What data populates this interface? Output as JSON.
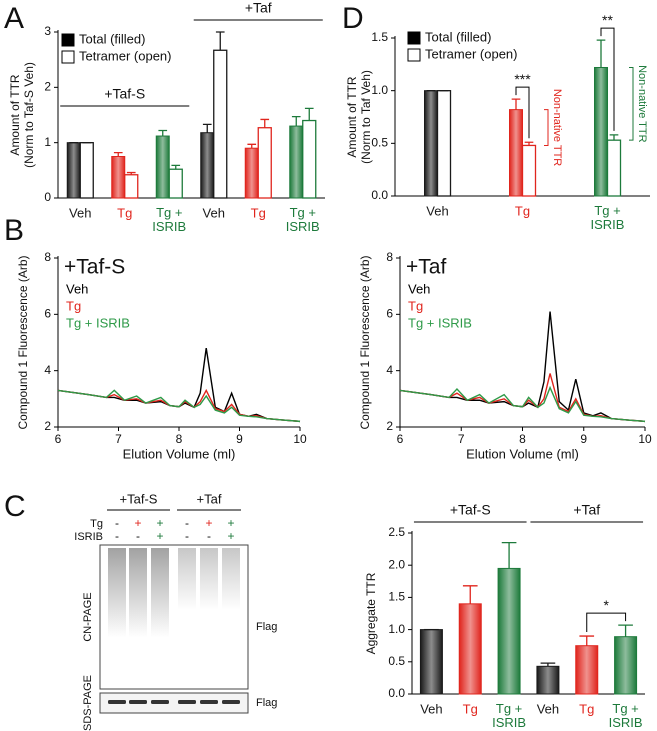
{
  "panel_labels": [
    "A",
    "B",
    "C",
    "D"
  ],
  "chart_data": [
    {
      "type": "bar",
      "ylabel": [
        "Amount of TTR",
        "(Norm to Taf-S Veh)"
      ],
      "groups": [
        "+Taf-S",
        "+Taf"
      ],
      "categories": [
        "Veh",
        "Tg",
        "Tg + ISRIB",
        "Veh",
        "Tg",
        "Tg + ISRIB"
      ],
      "colors": [
        "#1a1a1a",
        "#e0251d",
        "#1d7a3b",
        "#1a1a1a",
        "#e0251d",
        "#1d7a3b"
      ],
      "series": [
        {
          "name": "Total (filled)",
          "color": "#000000",
          "values": [
            1,
            0.75,
            1.12,
            1.18,
            0.9,
            1.3
          ],
          "errors": [
            0,
            0.07,
            0.1,
            0.15,
            0.07,
            0.17
          ]
        },
        {
          "name": "Tetramer (open)",
          "color": "#000000",
          "values": [
            1,
            0.42,
            0.52,
            2.67,
            1.27,
            1.4
          ],
          "errors": [
            0,
            0.04,
            0.07,
            0.33,
            0.15,
            0.22
          ]
        }
      ],
      "ylim": [
        0,
        3
      ],
      "yticks": [
        0,
        1,
        2,
        3
      ]
    },
    {
      "type": "bar",
      "ylabel": [
        "Amount of TTR",
        "(Norm to Taf Veh)"
      ],
      "categories": [
        "Veh",
        "Tg",
        "Tg + ISRIB"
      ],
      "colors": [
        "#1a1a1a",
        "#e0251d",
        "#1d7a3b"
      ],
      "series": [
        {
          "name": "Total (filled)",
          "color": "#000000",
          "values": [
            1,
            0.82,
            1.22
          ],
          "errors": [
            0,
            0.1,
            0.26
          ]
        },
        {
          "name": "Tetramer (open)",
          "color": "#000000",
          "values": [
            1,
            0.48,
            0.53
          ],
          "errors": [
            0,
            0.03,
            0.05
          ]
        }
      ],
      "ylim": [
        0,
        1.5
      ],
      "yticks": [
        {
          "value": 0,
          "label": "0.0"
        },
        0.5,
        {
          "value": 1,
          "label": "1.0"
        },
        1.5
      ],
      "significance": [
        "***",
        "**"
      ],
      "annotations": [
        "Non-native TTR",
        "Non-native TTR"
      ]
    },
    {
      "type": "line",
      "title": "+Taf-S",
      "xlabel": "Elution Volume (ml)",
      "ylabel": "Compound 1 Fluorescence (Arb)",
      "x": [
        6,
        6.5,
        6.8,
        6.93,
        7.1,
        7.3,
        7.45,
        7.7,
        7.85,
        8.0,
        8.1,
        8.25,
        8.35,
        8.45,
        8.6,
        8.75,
        8.87,
        9.0,
        9.15,
        9.28,
        9.45,
        9.7,
        10
      ],
      "series": [
        {
          "name": "Veh",
          "color": "#000000",
          "values": [
            3.3,
            3.15,
            3.05,
            3.05,
            2.95,
            2.95,
            2.85,
            2.9,
            2.76,
            2.72,
            2.85,
            2.7,
            3.2,
            4.8,
            2.7,
            2.55,
            3.2,
            2.45,
            2.38,
            2.45,
            2.3,
            2.25,
            2.2
          ]
        },
        {
          "name": "Tg",
          "color": "#e0251d",
          "values": [
            3.3,
            3.15,
            3.05,
            3.15,
            2.95,
            3.0,
            2.85,
            2.95,
            2.76,
            2.72,
            2.9,
            2.7,
            2.9,
            3.3,
            2.65,
            2.55,
            2.8,
            2.45,
            2.38,
            2.4,
            2.3,
            2.25,
            2.2
          ]
        },
        {
          "name": "Tg + ISRIB",
          "color": "#2e9a48",
          "values": [
            3.3,
            3.15,
            3.05,
            3.3,
            2.95,
            3.1,
            2.85,
            3.05,
            2.76,
            2.72,
            2.95,
            2.7,
            2.8,
            3.1,
            2.6,
            2.5,
            2.7,
            2.42,
            2.38,
            2.36,
            2.3,
            2.25,
            2.2
          ]
        }
      ],
      "xlim": [
        6,
        10
      ],
      "xticks": [
        6,
        7,
        8,
        9,
        10
      ],
      "ylim": [
        2,
        8
      ],
      "yticks": [
        2,
        4,
        6,
        8
      ]
    },
    {
      "type": "line",
      "title": "+Taf",
      "xlabel": "Elution Volume (ml)",
      "ylabel": "Compound 1 Fluorescence (Arb)",
      "x": [
        6,
        6.5,
        6.8,
        6.93,
        7.1,
        7.3,
        7.45,
        7.7,
        7.85,
        8.0,
        8.1,
        8.25,
        8.35,
        8.45,
        8.6,
        8.75,
        8.87,
        9.0,
        9.15,
        9.28,
        9.45,
        9.7,
        10
      ],
      "series": [
        {
          "name": "Veh",
          "color": "#000000",
          "values": [
            3.3,
            3.15,
            3.05,
            3.05,
            2.95,
            2.95,
            2.85,
            2.9,
            2.76,
            2.72,
            2.85,
            2.7,
            3.6,
            6.1,
            2.9,
            2.6,
            3.7,
            2.5,
            2.4,
            2.5,
            2.3,
            2.25,
            2.2
          ]
        },
        {
          "name": "Tg",
          "color": "#e0251d",
          "values": [
            3.3,
            3.15,
            3.05,
            3.2,
            2.95,
            3.05,
            2.85,
            3.0,
            2.76,
            2.72,
            2.95,
            2.7,
            3.0,
            3.9,
            2.7,
            2.55,
            3.0,
            2.45,
            2.38,
            2.4,
            2.3,
            2.25,
            2.2
          ]
        },
        {
          "name": "Tg + ISRIB",
          "color": "#2e9a48",
          "values": [
            3.3,
            3.15,
            3.05,
            3.35,
            2.95,
            3.15,
            2.85,
            3.15,
            2.76,
            2.72,
            3.05,
            2.7,
            2.85,
            3.4,
            2.65,
            2.5,
            2.9,
            2.42,
            2.38,
            2.36,
            2.3,
            2.25,
            2.2
          ]
        }
      ],
      "xlim": [
        6,
        10
      ],
      "xticks": [
        6,
        7,
        8,
        9,
        10
      ],
      "ylim": [
        2,
        8
      ],
      "yticks": [
        2,
        4,
        6,
        8
      ]
    },
    {
      "type": "bar",
      "ylabel": "Aggregate TTR",
      "groups": [
        "+Taf-S",
        "+Taf"
      ],
      "categories": [
        "Veh",
        "Tg",
        "Tg + ISRIB",
        "Veh",
        "Tg",
        "Tg + ISRIB"
      ],
      "colors": [
        "#1a1a1a",
        "#e0251d",
        "#1d7a3b",
        "#1a1a1a",
        "#e0251d",
        "#1d7a3b"
      ],
      "values": [
        1,
        1.4,
        1.95,
        0.43,
        0.75,
        0.89
      ],
      "errors": [
        0,
        0.28,
        0.4,
        0.05,
        0.15,
        0.18
      ],
      "ylim": [
        0,
        2.5
      ],
      "yticks": [
        {
          "value": 0,
          "label": "0.0"
        },
        0.5,
        {
          "value": 1,
          "label": "1.0"
        },
        1.5,
        {
          "value": 2,
          "label": "2.0"
        },
        2.5
      ],
      "significance": [
        "*"
      ]
    }
  ],
  "blot": {
    "groups": [
      "+Taf-S",
      "+Taf"
    ],
    "rows": [
      {
        "name": "Tg",
        "signs": [
          "-",
          "+",
          "+",
          "-",
          "+",
          "+"
        ]
      },
      {
        "name": "ISRIB",
        "signs": [
          "-",
          "-",
          "+",
          "-",
          "-",
          "+"
        ]
      }
    ],
    "gels": [
      "CN-PAGE",
      "SDS-PAGE"
    ],
    "antibody": [
      "Flag",
      "Flag"
    ]
  }
}
